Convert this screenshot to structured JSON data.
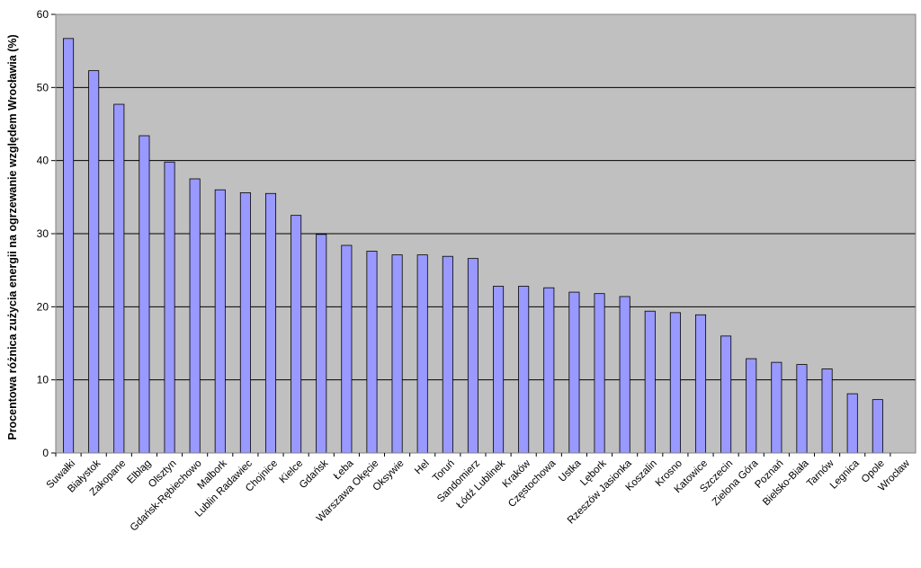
{
  "chart_data": {
    "type": "bar",
    "ylabel": "Procentowa różnica zużycia energii na ogrzewanie względem Wrocławia (%)",
    "xlabel": "",
    "ylim": [
      0,
      60
    ],
    "yticks": [
      0,
      10,
      20,
      30,
      40,
      50,
      60
    ],
    "grid": true,
    "legend": false,
    "colors": {
      "bar_fill": "#9999ff",
      "bar_stroke": "#000000",
      "plot_bg": "#c0c0c0",
      "grid": "#000000"
    },
    "categories": [
      "Suwałki",
      "Białystok",
      "Zakopane",
      "Elbląg",
      "Olsztyn",
      "Gdańsk-Rębiechowo",
      "Malbork",
      "Lublin Radawiec",
      "Chojnice",
      "Kielce",
      "Gdańsk",
      "Łeba",
      "Warszawa Okęcie",
      "Oksywie",
      "Hel",
      "Toruń",
      "Sandomierz",
      "Łódź Lublinek",
      "Kraków",
      "Częstochowa",
      "Ustka",
      "Lębork",
      "Rzeszów Jasionka",
      "Koszalin",
      "Krosno",
      "Katowice",
      "Szczecin",
      "Zielona Góra",
      "Poznań",
      "Bielsko-Biała",
      "Tarnów",
      "Legnica",
      "Opole",
      "Wrocław"
    ],
    "values": [
      56.7,
      52.3,
      47.7,
      43.4,
      39.8,
      37.5,
      36.0,
      35.6,
      35.5,
      32.5,
      29.9,
      28.4,
      27.6,
      27.1,
      27.1,
      26.9,
      26.6,
      22.8,
      22.8,
      22.6,
      22.0,
      21.8,
      21.4,
      19.4,
      19.2,
      18.9,
      16.0,
      12.9,
      12.4,
      12.1,
      11.5,
      8.1,
      7.3,
      0
    ]
  }
}
